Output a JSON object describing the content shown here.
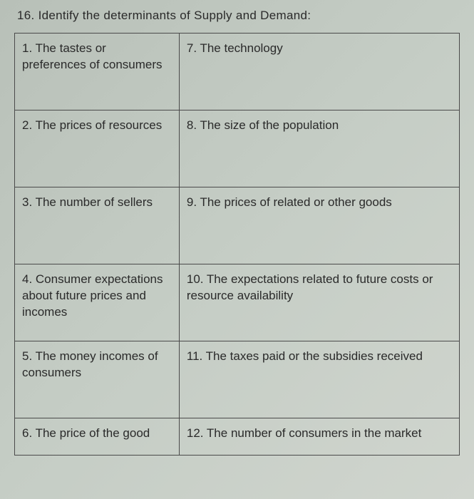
{
  "question": {
    "number": "16.",
    "text": "Identify the determinants of Supply and Demand:"
  },
  "table": {
    "rows": [
      {
        "left": "1.  The tastes or preferences of consumers",
        "right": "7.  The technology"
      },
      {
        "left": "2.  The prices of resources",
        "right": "8.   The size of the population"
      },
      {
        "left": "3.  The number of sellers",
        "right": "9.  The prices of related or other goods"
      },
      {
        "left": "4.  Consumer expectations about future prices and incomes",
        "right": "10.  The expectations related to future costs or resource availability"
      },
      {
        "left": "5.  The money incomes of consumers",
        "right": "11.  The taxes paid or the subsidies received"
      },
      {
        "left": "6.  The price of the good",
        "right": "12.  The number of consumers in the market"
      }
    ]
  }
}
